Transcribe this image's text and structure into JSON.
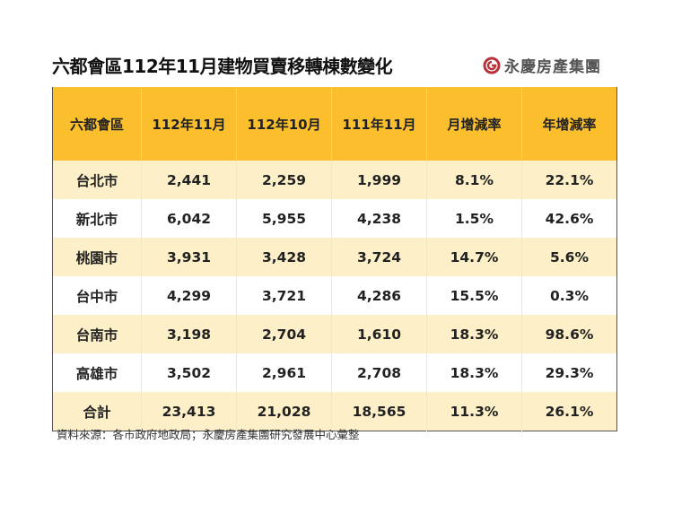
{
  "title": "六都會區112年11月建物買賣移轉棟數變化",
  "logo": {
    "text": "永慶房產集團",
    "icon": "yungching-logo-icon",
    "color": "#b8323a"
  },
  "colors": {
    "header_bg": "#fbbf2e",
    "row_alt_bg": "#fdf0c8"
  },
  "table": {
    "headers": [
      "六都會區",
      "112年11月",
      "112年10月",
      "111年11月",
      "月增減率",
      "年增減率"
    ],
    "rows": [
      [
        "台北市",
        "2,441",
        "2,259",
        "1,999",
        "8.1%",
        "22.1%"
      ],
      [
        "新北市",
        "6,042",
        "5,955",
        "4,238",
        "1.5%",
        "42.6%"
      ],
      [
        "桃園市",
        "3,931",
        "3,428",
        "3,724",
        "14.7%",
        "5.6%"
      ],
      [
        "台中市",
        "4,299",
        "3,721",
        "4,286",
        "15.5%",
        "0.3%"
      ],
      [
        "台南市",
        "3,198",
        "2,704",
        "1,610",
        "18.3%",
        "98.6%"
      ],
      [
        "高雄市",
        "3,502",
        "2,961",
        "2,708",
        "18.3%",
        "29.3%"
      ],
      [
        "合計",
        "23,413",
        "21,028",
        "18,565",
        "11.3%",
        "26.1%"
      ]
    ]
  },
  "source": "資料來源：各市政府地政局；永慶房產集團研究發展中心彙整"
}
